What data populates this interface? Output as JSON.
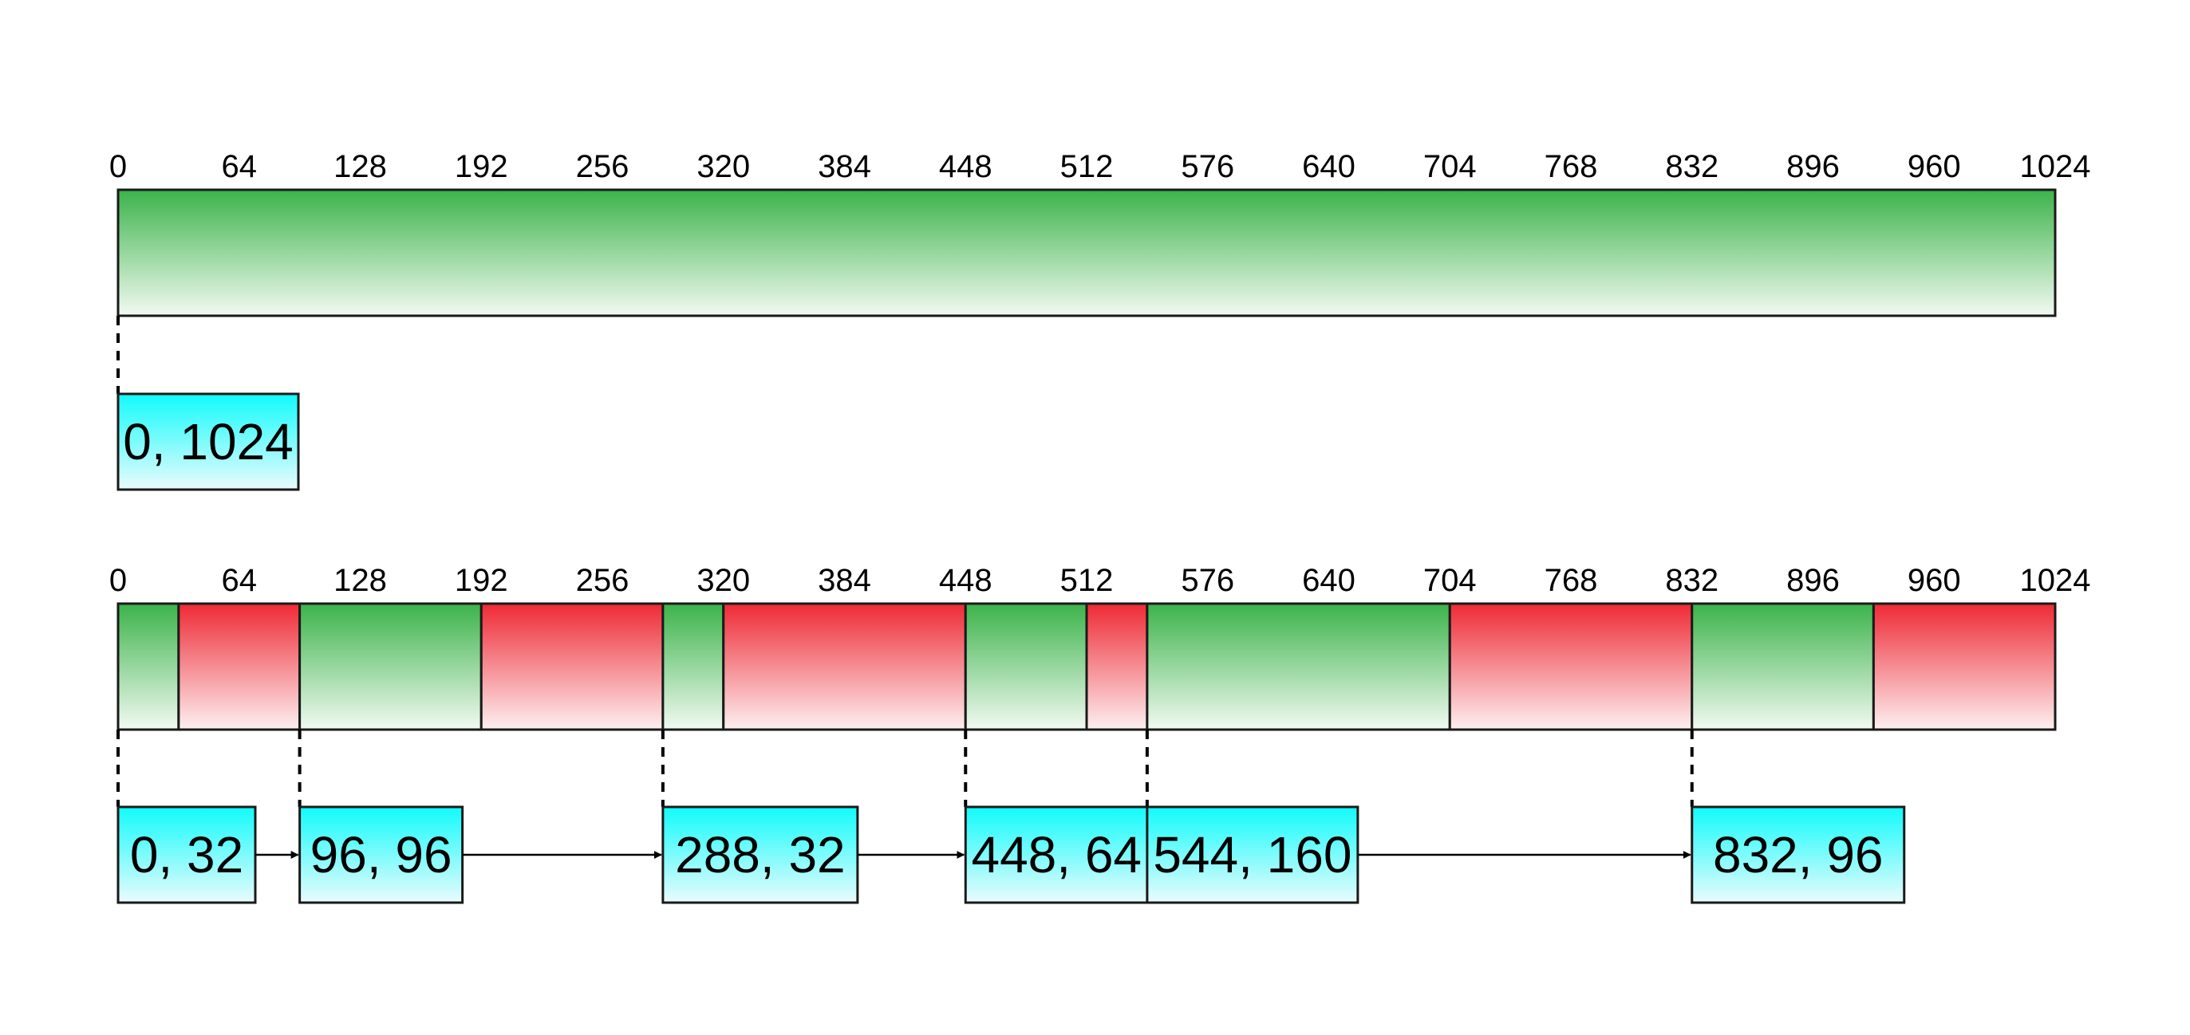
{
  "scale": {
    "min": 0,
    "max": 1024,
    "ticks": [
      "0",
      "64",
      "128",
      "192",
      "256",
      "320",
      "384",
      "448",
      "512",
      "576",
      "640",
      "704",
      "768",
      "832",
      "896",
      "960",
      "1024"
    ]
  },
  "colors": {
    "free": "#3cb34a",
    "used": "#ee2a35",
    "node": "#11fbfb",
    "line": "#1a1a1a"
  },
  "memory_maps": [
    {
      "segments": [
        {
          "start": 0,
          "end": 1024,
          "state": "free"
        }
      ],
      "free_list": [
        {
          "label": "0, 1024",
          "start": 0,
          "size": 1024
        }
      ]
    },
    {
      "segments": [
        {
          "start": 0,
          "end": 32,
          "state": "free"
        },
        {
          "start": 32,
          "end": 96,
          "state": "used"
        },
        {
          "start": 96,
          "end": 192,
          "state": "free"
        },
        {
          "start": 192,
          "end": 288,
          "state": "used"
        },
        {
          "start": 288,
          "end": 320,
          "state": "free"
        },
        {
          "start": 320,
          "end": 448,
          "state": "used"
        },
        {
          "start": 448,
          "end": 512,
          "state": "free"
        },
        {
          "start": 512,
          "end": 544,
          "state": "used"
        },
        {
          "start": 544,
          "end": 704,
          "state": "free"
        },
        {
          "start": 704,
          "end": 832,
          "state": "used"
        },
        {
          "start": 832,
          "end": 928,
          "state": "free"
        },
        {
          "start": 928,
          "end": 1024,
          "state": "used"
        }
      ],
      "free_list": [
        {
          "label": "0, 32",
          "start": 0,
          "size": 32
        },
        {
          "label": "96, 96",
          "start": 96,
          "size": 96
        },
        {
          "label": "288, 32",
          "start": 288,
          "size": 32
        },
        {
          "label": "448, 64",
          "start": 448,
          "size": 64
        },
        {
          "label": "544, 160",
          "start": 544,
          "size": 160
        },
        {
          "label": "832, 96",
          "start": 832,
          "size": 96
        }
      ]
    }
  ]
}
